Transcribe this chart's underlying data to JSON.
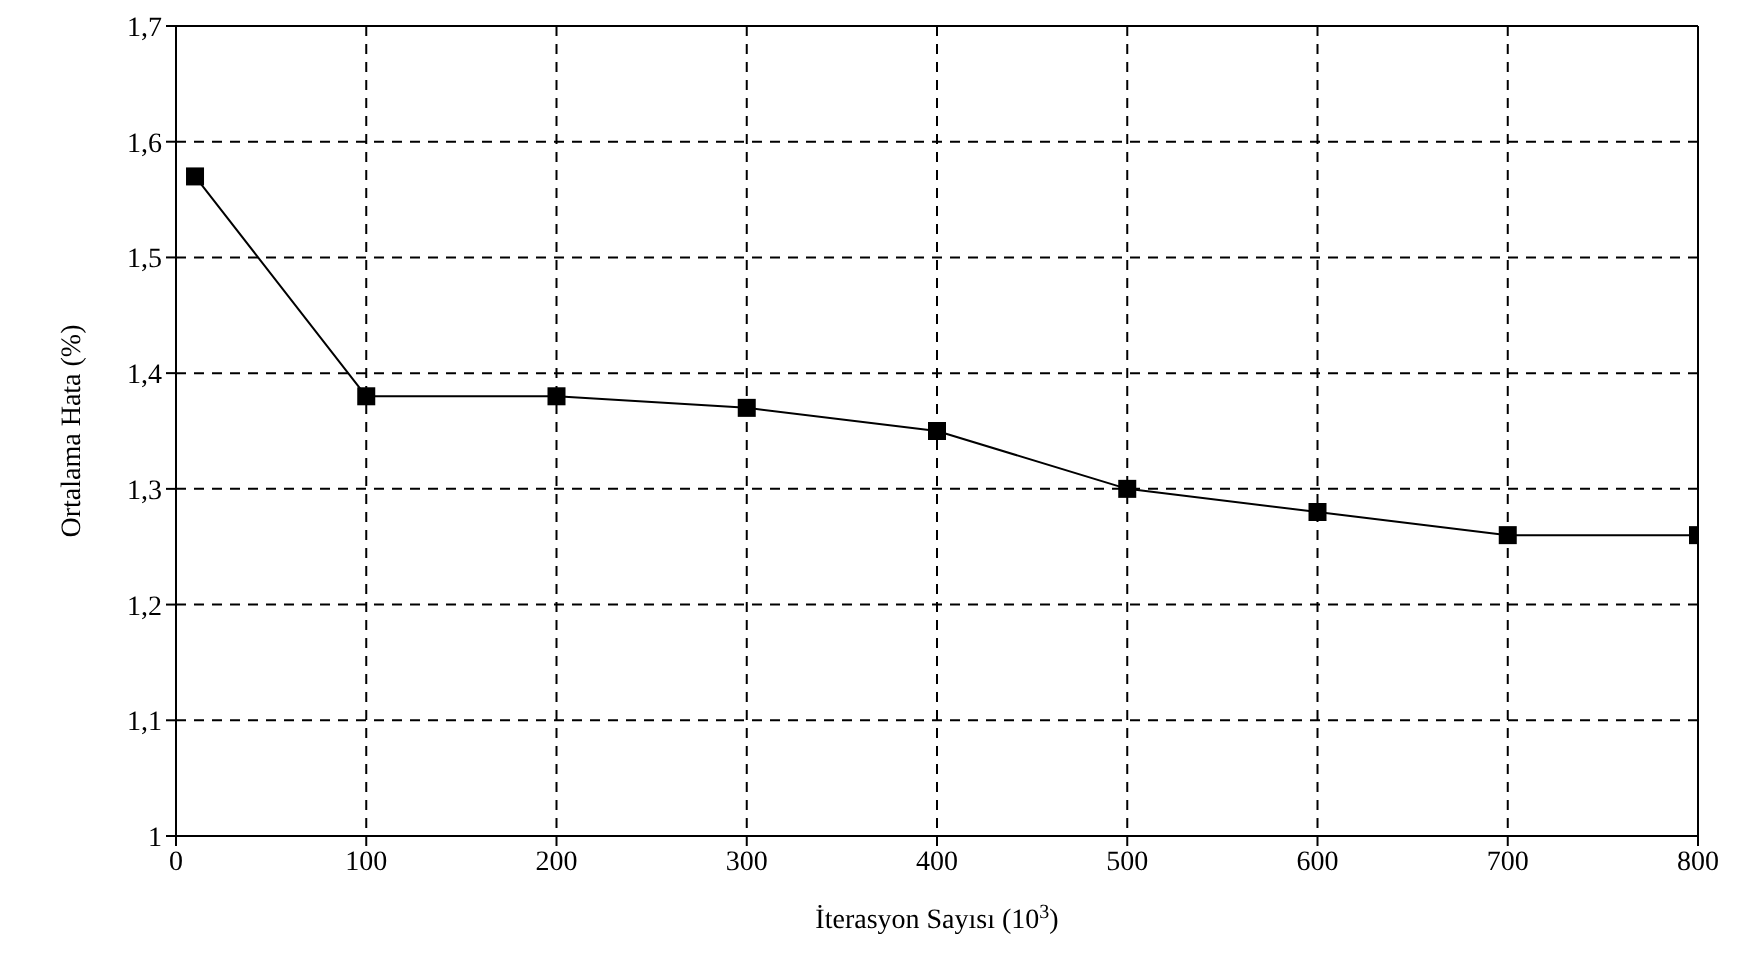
{
  "chart_data": {
    "type": "line",
    "xlabel": "İterasyon Sayısı (10$^{3}$)",
    "ylabel": "Ortalama Hata (%)",
    "x": [
      10,
      100,
      200,
      300,
      400,
      500,
      600,
      700,
      800
    ],
    "series": [
      {
        "color": "#000000",
        "values": [
          1.57,
          1.38,
          1.38,
          1.37,
          1.35,
          1.3,
          1.28,
          1.26,
          1.26
        ]
      }
    ],
    "xlim": [
      0,
      800
    ],
    "xticks": [
      0,
      100,
      200,
      300,
      400,
      500,
      600,
      700,
      800
    ],
    "ylim": [
      1,
      1.7
    ],
    "yticks": [
      1,
      {
        "value": 1.1,
        "label": "1,1"
      },
      {
        "value": 1.2,
        "label": "1,2"
      },
      {
        "value": 1.3,
        "label": "1,3"
      },
      {
        "value": 1.4,
        "label": "1,4"
      },
      {
        "value": 1.5,
        "label": "1,5"
      },
      {
        "value": 1.6,
        "label": "1,6"
      },
      {
        "value": 1.7,
        "label": "1,7"
      }
    ],
    "grid": true,
    "marker": "square",
    "line_style": "solid",
    "legend": false
  }
}
